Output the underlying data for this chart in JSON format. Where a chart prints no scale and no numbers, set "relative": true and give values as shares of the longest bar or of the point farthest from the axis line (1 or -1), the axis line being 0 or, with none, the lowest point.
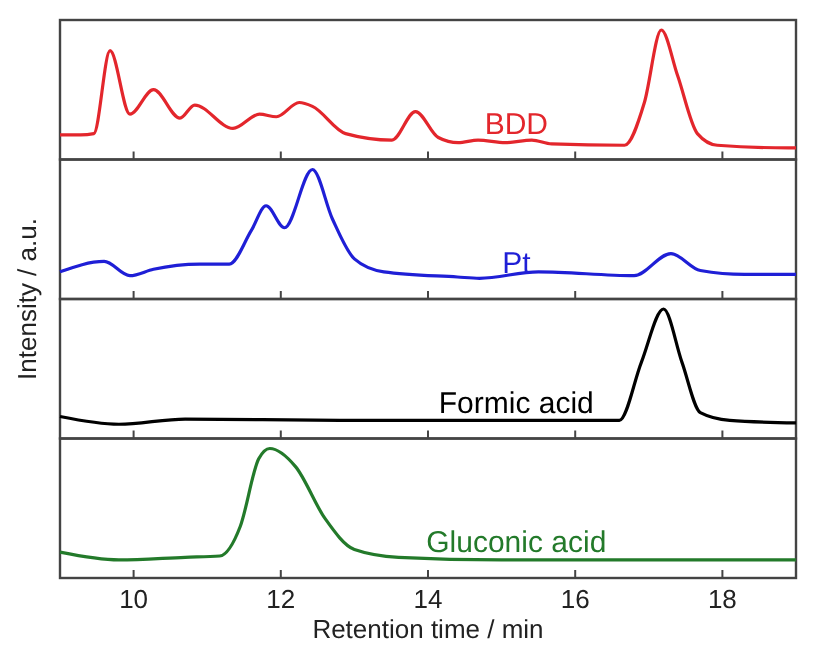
{
  "chart_data": [
    {
      "type": "line",
      "relative": true,
      "xlim": [
        9,
        19
      ],
      "xticks": [
        10,
        12,
        14,
        16,
        18
      ],
      "tick_labels": false,
      "series": [
        {
          "name": "BDD",
          "color": "#e3262c",
          "x": [
            9.0,
            9.28,
            9.46,
            9.68,
            9.95,
            10.27,
            10.63,
            10.83,
            11.35,
            11.71,
            11.94,
            12.25,
            12.43,
            12.88,
            13.51,
            13.83,
            14.14,
            14.41,
            14.68,
            15.05,
            15.41,
            15.68,
            16.67,
            16.94,
            17.17,
            17.39,
            17.66,
            17.93,
            18.9,
            19.0
          ],
          "values": [
            0.19,
            0.19,
            0.2,
            0.84,
            0.35,
            0.54,
            0.32,
            0.42,
            0.24,
            0.35,
            0.33,
            0.44,
            0.41,
            0.2,
            0.15,
            0.37,
            0.17,
            0.13,
            0.15,
            0.13,
            0.15,
            0.12,
            0.11,
            0.44,
            1.0,
            0.65,
            0.2,
            0.11,
            0.09,
            0.09
          ]
        }
      ]
    },
    {
      "type": "line",
      "relative": true,
      "xlim": [
        9,
        19
      ],
      "xticks": [
        10,
        12,
        14,
        16,
        18
      ],
      "tick_labels": false,
      "series": [
        {
          "name": "Pt",
          "color": "#1f1fd6",
          "x": [
            9.0,
            9.6,
            9.95,
            10.27,
            10.9,
            11.3,
            11.6,
            11.8,
            12.05,
            12.43,
            12.7,
            13.0,
            13.4,
            14.4,
            14.7,
            15.5,
            16.8,
            17.3,
            17.7,
            18.3,
            19.0
          ],
          "values": [
            0.21,
            0.29,
            0.18,
            0.23,
            0.27,
            0.27,
            0.53,
            0.72,
            0.55,
            1.0,
            0.62,
            0.31,
            0.21,
            0.17,
            0.16,
            0.21,
            0.18,
            0.35,
            0.22,
            0.19,
            0.19
          ]
        }
      ]
    },
    {
      "type": "line",
      "relative": true,
      "xlim": [
        9,
        19
      ],
      "xticks": [
        10,
        12,
        14,
        16,
        18
      ],
      "tick_labels": false,
      "series": [
        {
          "name": "Formic acid",
          "color": "#000000",
          "x": [
            9.0,
            9.8,
            10.7,
            12.8,
            16.6,
            16.9,
            17.2,
            17.45,
            17.7,
            18.1,
            19.0
          ],
          "values": [
            0.17,
            0.11,
            0.15,
            0.14,
            0.14,
            0.59,
            1.0,
            0.59,
            0.2,
            0.14,
            0.12
          ]
        }
      ]
    },
    {
      "type": "line",
      "relative": true,
      "xlim": [
        9,
        19
      ],
      "xticks": [
        10,
        12,
        14,
        16,
        18
      ],
      "tick_labels": "x",
      "xlabel": "Retention time / min",
      "ylabel": "Intensity / a.u.",
      "series": [
        {
          "name": "Gluconic acid",
          "color": "#237a2a",
          "x": [
            9.0,
            9.8,
            10.7,
            11.17,
            11.45,
            11.7,
            11.85,
            12.2,
            12.6,
            13.0,
            13.6,
            15.0,
            19.0
          ],
          "values": [
            0.2,
            0.14,
            0.16,
            0.17,
            0.4,
            0.92,
            1.0,
            0.86,
            0.46,
            0.22,
            0.16,
            0.14,
            0.14
          ]
        }
      ]
    }
  ]
}
